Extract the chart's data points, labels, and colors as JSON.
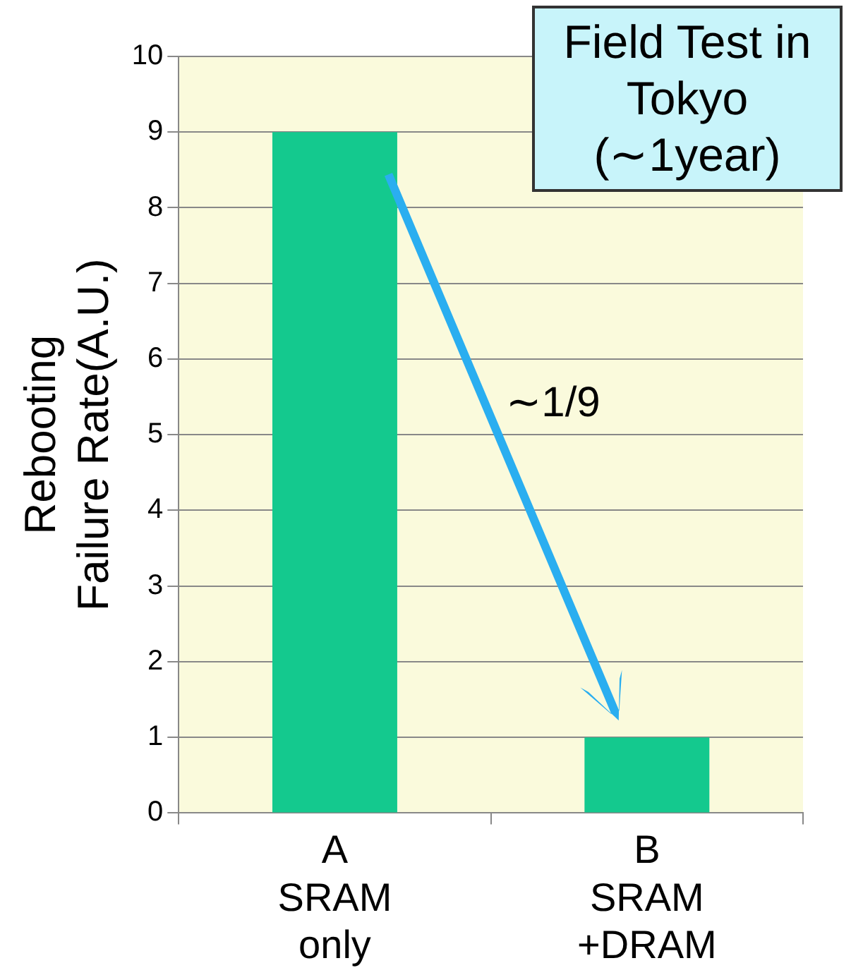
{
  "chart_data": {
    "type": "bar",
    "categories": [
      "A\nSRAM\nonly",
      "B\nSRAM\n+DRAM"
    ],
    "values": [
      9,
      1
    ],
    "color": "#14c98e",
    "ylabel": "Rebooting\nFailure Rate(A.U.)",
    "ylim": [
      0,
      10
    ],
    "yticks": [
      0,
      1,
      2,
      3,
      4,
      5,
      6,
      7,
      8,
      9,
      10
    ],
    "grid": "y",
    "annotations": [
      "Field Test in Tokyo (∼1year)",
      "∼1/9"
    ]
  }
}
